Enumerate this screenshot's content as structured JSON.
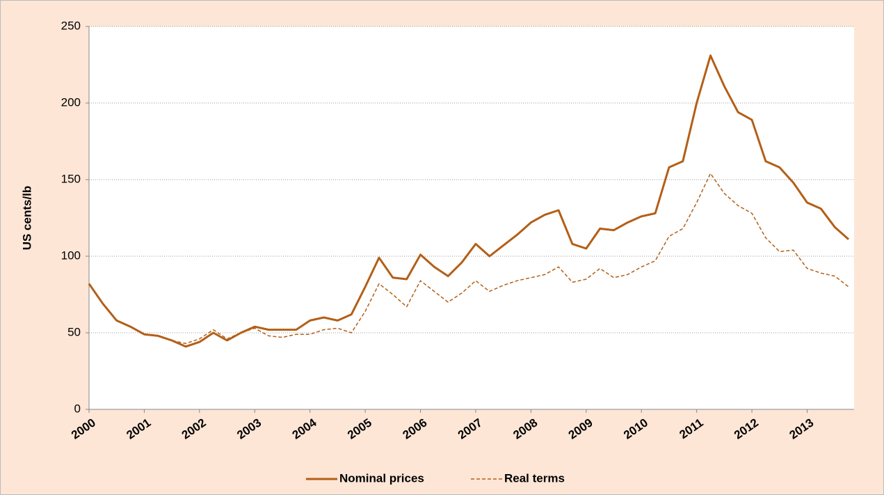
{
  "chart_data": {
    "type": "line",
    "y_label": "US cents/lb",
    "x": [
      2000,
      2000.25,
      2000.5,
      2000.75,
      2001,
      2001.25,
      2001.5,
      2001.75,
      2002,
      2002.25,
      2002.5,
      2002.75,
      2003,
      2003.25,
      2003.5,
      2003.75,
      2004,
      2004.25,
      2004.5,
      2004.75,
      2005,
      2005.25,
      2005.5,
      2005.75,
      2006,
      2006.25,
      2006.5,
      2006.75,
      2007,
      2007.25,
      2007.5,
      2007.75,
      2008,
      2008.25,
      2008.5,
      2008.75,
      2009,
      2009.25,
      2009.5,
      2009.75,
      2010,
      2010.25,
      2010.5,
      2010.75,
      2011,
      2011.25,
      2011.5,
      2011.75,
      2012,
      2012.25,
      2012.5,
      2012.75,
      2013,
      2013.25,
      2013.5,
      2013.75
    ],
    "series": [
      {
        "name": "Nominal prices",
        "color": "#b35f17",
        "dashed": false,
        "values": [
          82,
          69,
          58,
          54,
          49,
          48,
          45,
          41,
          44,
          50,
          45,
          50,
          54,
          52,
          52,
          52,
          58,
          60,
          58,
          62,
          80,
          99,
          86,
          85,
          101,
          93,
          87,
          96,
          108,
          100,
          107,
          114,
          122,
          127,
          130,
          108,
          105,
          118,
          117,
          122,
          126,
          128,
          158,
          162,
          200,
          231,
          211,
          194,
          189,
          162,
          158,
          148,
          135,
          131,
          119,
          111
        ]
      },
      {
        "name": "Real terms",
        "color": "#b35f17",
        "dashed": true,
        "values": [
          82,
          69,
          58,
          54,
          49,
          48,
          45,
          43,
          46,
          52,
          46,
          50,
          53,
          48,
          47,
          49,
          49,
          52,
          53,
          50,
          64,
          82,
          75,
          67,
          84,
          77,
          70,
          76,
          84,
          77,
          81,
          84,
          86,
          88,
          93,
          83,
          85,
          92,
          86,
          88,
          93,
          97,
          113,
          118,
          135,
          154,
          141,
          133,
          128,
          112,
          103,
          104,
          92,
          89,
          87,
          80
        ]
      }
    ],
    "xlim": [
      2000,
      2013.85
    ],
    "xticks": [
      2000,
      2001,
      2002,
      2003,
      2004,
      2005,
      2006,
      2007,
      2008,
      2009,
      2010,
      2011,
      2012,
      2013
    ],
    "ylim": [
      0,
      250
    ],
    "yticks": [
      0,
      50,
      100,
      150,
      200,
      250
    ],
    "grid": true,
    "legend": "bottom"
  }
}
